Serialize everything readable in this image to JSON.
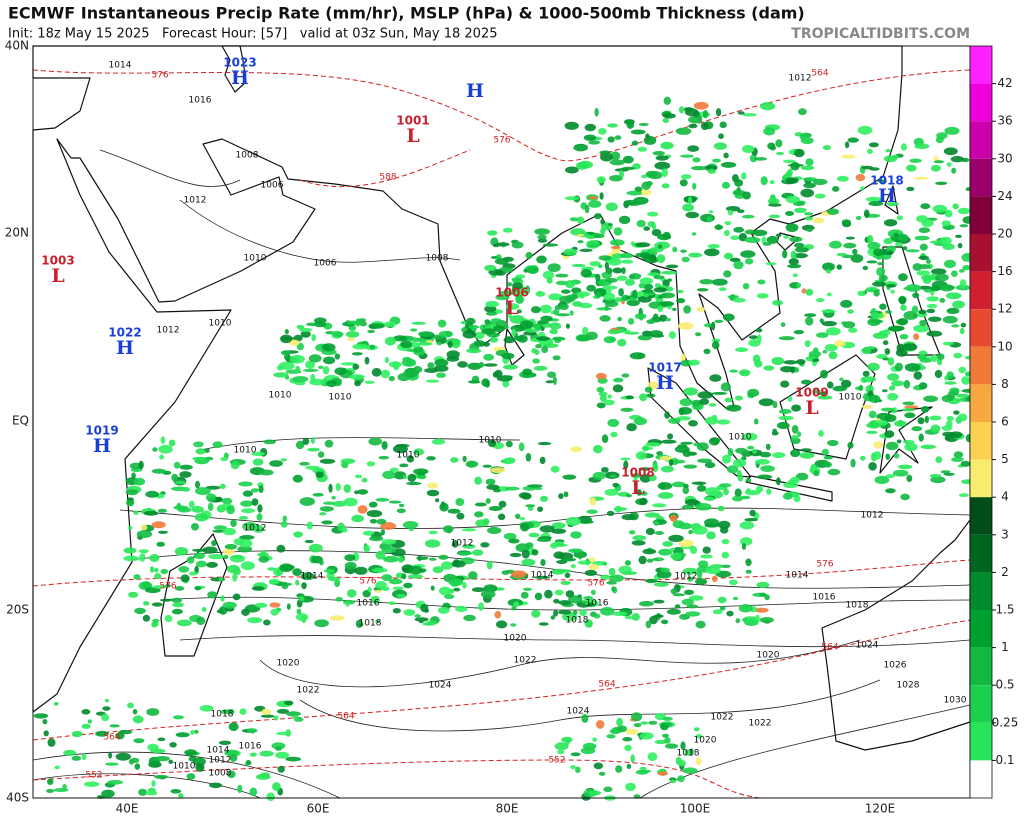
{
  "header": {
    "title": "ECMWF Instantaneous Precip Rate (mm/hr), MSLP (hPa) & 1000-500mb Thickness (dam)",
    "subtitle": "Init: 18z May 15 2025   Forecast Hour: [57]   valid at 03z Sun, May 18 2025",
    "source": "TROPICALTIDBITS.COM"
  },
  "map": {
    "lat_labels": [
      "40N",
      "20N",
      "EQ",
      "20S",
      "40S"
    ],
    "lon_labels": [
      "40E",
      "60E",
      "80E",
      "100E",
      "120E"
    ],
    "centers": [
      {
        "symbol": "H",
        "pressure": "1023"
      },
      {
        "symbol": "L",
        "pressure": "1001"
      },
      {
        "symbol": "H"
      },
      {
        "symbol": "H",
        "pressure": "1018"
      },
      {
        "symbol": "L",
        "pressure": "1003"
      },
      {
        "symbol": "L",
        "pressure": "1006"
      },
      {
        "symbol": "H",
        "pressure": "1022"
      },
      {
        "symbol": "H",
        "pressure": "1017"
      },
      {
        "symbol": "L",
        "pressure": "1009"
      },
      {
        "symbol": "H",
        "pressure": "1019"
      },
      {
        "symbol": "L",
        "pressure": "1008"
      }
    ],
    "isobar_labels": [
      "1014",
      "1016",
      "1008",
      "1006",
      "1012",
      "1010",
      "1006",
      "1008",
      "1010",
      "1012",
      "1010",
      "1010",
      "1010",
      "1010",
      "1010",
      "1012",
      "1012",
      "1014",
      "1016",
      "1018",
      "1014",
      "1016",
      "1018",
      "1020",
      "1022",
      "1020",
      "1022",
      "1024",
      "1024",
      "1018",
      "1016",
      "1014",
      "1012",
      "1010",
      "1008",
      "1020",
      "1018",
      "1022",
      "1022",
      "1020",
      "1024",
      "1026",
      "1028",
      "1030",
      "1014",
      "1016",
      "1018",
      "1012",
      "1012",
      "1010",
      "1010",
      "1012"
    ],
    "thickness_labels": [
      "576",
      "588",
      "576",
      "564",
      "576",
      "576",
      "576",
      "576",
      "564",
      "564",
      "564",
      "552",
      "552",
      "564"
    ]
  },
  "colorbar": {
    "labels": [
      "42",
      "36",
      "30",
      "24",
      "20",
      "16",
      "12",
      "10",
      "8",
      "6",
      "5",
      "4",
      "3",
      "2",
      "1.5",
      "1",
      "0.5",
      "0.25",
      "0.1"
    ]
  }
}
